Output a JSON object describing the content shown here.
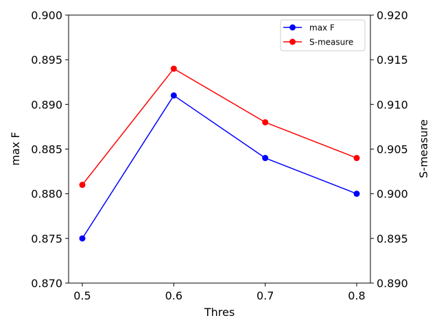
{
  "chart_data": {
    "type": "line",
    "x": [
      0.5,
      0.6,
      0.7,
      0.8
    ],
    "xticks": [
      "0.5",
      "0.6",
      "0.7",
      "0.8"
    ],
    "xlabel": "Thres",
    "xlim": [
      0.485,
      0.815
    ],
    "ylabel_left": "max F",
    "ylim_left": [
      0.87,
      0.9
    ],
    "yticks_left": [
      "0.870",
      "0.875",
      "0.880",
      "0.885",
      "0.890",
      "0.895",
      "0.900"
    ],
    "ylabel_right": "S-measure",
    "ylim_right": [
      0.89,
      0.92
    ],
    "yticks_right": [
      "0.890",
      "0.895",
      "0.900",
      "0.905",
      "0.910",
      "0.915",
      "0.920"
    ],
    "grid": false,
    "legend_position": "top-right",
    "series": [
      {
        "name": "max F",
        "axis": "left",
        "color": "#0000ff",
        "values": [
          0.875,
          0.891,
          0.884,
          0.88
        ]
      },
      {
        "name": "S-measure",
        "axis": "right",
        "color": "#ff0000",
        "values": [
          0.901,
          0.914,
          0.908,
          0.904
        ]
      }
    ]
  }
}
